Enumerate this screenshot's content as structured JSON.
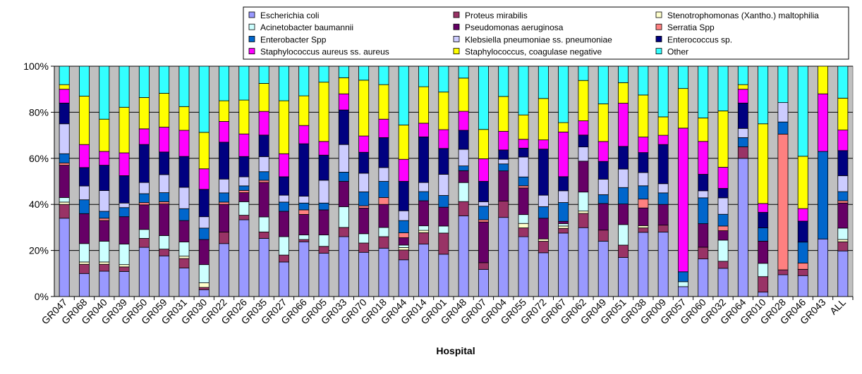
{
  "chart_data": {
    "type": "bar",
    "stacked": true,
    "normalized": true,
    "title": "",
    "xlabel": "Hospital",
    "ylabel": "",
    "ylim": [
      0,
      100
    ],
    "yticks": [
      "0%",
      "20%",
      "40%",
      "60%",
      "80%",
      "100%"
    ],
    "grid": true,
    "legend_position": "top-right",
    "plot_background": "#c0c0c0",
    "categories": [
      "GR047",
      "GR068",
      "GR040",
      "GR039",
      "GR050",
      "GR059",
      "GR031",
      "GR030",
      "GR022",
      "GR026",
      "GR035",
      "GR027",
      "GR066",
      "GR005",
      "GR033",
      "GR070",
      "GR018",
      "GR044",
      "GR014",
      "GR001",
      "GR048",
      "GR007",
      "GR004",
      "GR055",
      "GR072",
      "GR067",
      "GR062",
      "GR049",
      "GR051",
      "GR038",
      "GR009",
      "GR057",
      "GR060",
      "GR032",
      "GR064",
      "GR010",
      "GR028",
      "GR046",
      "GR043",
      "ALL"
    ],
    "series": [
      {
        "name": "Escherichia coli",
        "color": "#9999ff",
        "values": [
          34,
          10,
          11,
          11,
          22,
          18,
          12,
          3,
          23,
          34,
          27,
          15,
          24,
          19,
          26,
          19,
          21,
          15,
          23,
          18,
          34,
          12,
          34,
          27,
          19,
          27,
          29,
          25,
          19,
          29,
          28,
          4,
          16,
          12,
          60,
          2,
          9,
          10,
          25,
          20
        ]
      },
      {
        "name": "Proteus mirabilis",
        "color": "#993366",
        "values": [
          6,
          4,
          3,
          2,
          4,
          3,
          4,
          1,
          5,
          2,
          3,
          3,
          1,
          3,
          4,
          4,
          5,
          4,
          5,
          9,
          6,
          3,
          7,
          4,
          5,
          2,
          6,
          5,
          6,
          2,
          3,
          0,
          5,
          3,
          5,
          7,
          2,
          3,
          0,
          4
        ]
      },
      {
        "name": "Stenotrophomonas (Xantho.) maltophilia",
        "color": "#ffffcc",
        "values": [
          1,
          1,
          1,
          1,
          0,
          0,
          1,
          2,
          0,
          0,
          0,
          0,
          0,
          0,
          0,
          0,
          0,
          1,
          1,
          0,
          0,
          0,
          0,
          2,
          1,
          1,
          1,
          0,
          0,
          1,
          0,
          0,
          0,
          0,
          0,
          0,
          0,
          0,
          0,
          1
        ]
      },
      {
        "name": "Acinetobacter baumannii",
        "color": "#ccffff",
        "values": [
          2,
          8,
          9,
          9,
          4,
          6,
          6,
          8,
          0,
          6,
          7,
          8,
          2,
          5,
          9,
          4,
          4,
          1,
          2,
          3,
          8,
          0,
          0,
          4,
          0,
          1,
          8,
          0,
          10,
          0,
          0,
          2,
          0,
          9,
          0,
          6,
          0,
          0,
          0,
          5
        ]
      },
      {
        "name": "Pseudomonas aeruginosa",
        "color": "#660066",
        "values": [
          14,
          13,
          9,
          12,
          11,
          14,
          9,
          11,
          12,
          4,
          16,
          11,
          9,
          11,
          11,
          11,
          10,
          3,
          11,
          8,
          5,
          18,
          13,
          12,
          9,
          1,
          13,
          12,
          10,
          8,
          9,
          0,
          10,
          4,
          0,
          10,
          0,
          0,
          0,
          11
        ]
      },
      {
        "name": "Serratia Spp",
        "color": "#ff8080",
        "values": [
          1,
          0,
          1,
          0,
          1,
          1,
          0,
          0,
          1,
          1,
          1,
          0,
          2,
          0,
          0,
          1,
          3,
          2,
          0,
          0,
          0,
          1,
          0,
          1,
          0,
          0,
          0,
          0,
          0,
          4,
          0,
          0,
          0,
          2,
          0,
          0,
          56,
          3,
          0,
          1
        ]
      },
      {
        "name": "Enterobacter Spp",
        "color": "#0066cc",
        "values": [
          4,
          6,
          3,
          4,
          4,
          4,
          5,
          5,
          4,
          2,
          4,
          4,
          3,
          3,
          4,
          6,
          7,
          5,
          4,
          5,
          2,
          6,
          3,
          4,
          5,
          8,
          0,
          4,
          8,
          6,
          5,
          4,
          11,
          5,
          4,
          6,
          5,
          10,
          38,
          4
        ]
      },
      {
        "name": "Klebsiella pneumoniae ss. pneumoniae",
        "color": "#ccccff",
        "values": [
          13,
          6,
          9,
          2,
          5,
          8,
          9,
          5,
          6,
          4,
          7,
          3,
          3,
          10,
          12,
          8,
          6,
          4,
          4,
          9,
          7,
          2,
          2,
          9,
          5,
          5,
          6,
          7,
          9,
          6,
          4,
          0,
          3,
          7,
          4,
          0,
          8,
          0,
          0,
          7
        ]
      },
      {
        "name": "Enterococcus sp.",
        "color": "#000080",
        "values": [
          9,
          8,
          11,
          12,
          17,
          10,
          13,
          12,
          16,
          9,
          10,
          8,
          23,
          11,
          15,
          9,
          13,
          12,
          20,
          11,
          8,
          9,
          4,
          4,
          20,
          6,
          5,
          8,
          11,
          9,
          17,
          0,
          7,
          4,
          11,
          7,
          0,
          10,
          0,
          11
        ]
      },
      {
        "name": "Staphylococcus aureus ss. aureus",
        "color": "#ff00ff",
        "values": [
          6,
          10,
          6,
          10,
          7,
          11,
          11,
          9,
          9,
          10,
          11,
          10,
          8,
          6,
          7,
          7,
          8,
          9,
          6,
          8,
          8,
          10,
          8,
          4,
          4,
          19,
          6,
          9,
          21,
          7,
          4,
          58,
          14,
          9,
          6,
          4,
          0,
          6,
          25,
          9
        ]
      },
      {
        "name": "Staphylococcus, coagulase negative",
        "color": "#ffff00",
        "values": [
          2,
          21,
          14,
          20,
          14,
          15,
          10,
          16,
          9,
          15,
          13,
          23,
          13,
          26,
          7,
          24,
          15,
          14,
          16,
          16,
          14,
          13,
          15,
          11,
          18,
          4,
          17,
          17,
          10,
          19,
          8,
          16,
          10,
          24,
          2,
          36,
          0,
          25,
          12,
          14
        ]
      },
      {
        "name": "Other",
        "color": "#33ffff",
        "values": [
          8,
          13,
          23,
          18,
          14,
          12,
          17,
          29,
          15,
          15,
          8,
          15,
          13,
          7,
          5,
          6,
          8,
          24,
          9,
          11,
          5,
          28,
          13,
          22,
          14,
          24,
          6,
          17,
          8,
          13,
          22,
          9,
          22,
          19,
          8,
          26,
          15,
          43,
          0,
          14
        ]
      }
    ]
  }
}
